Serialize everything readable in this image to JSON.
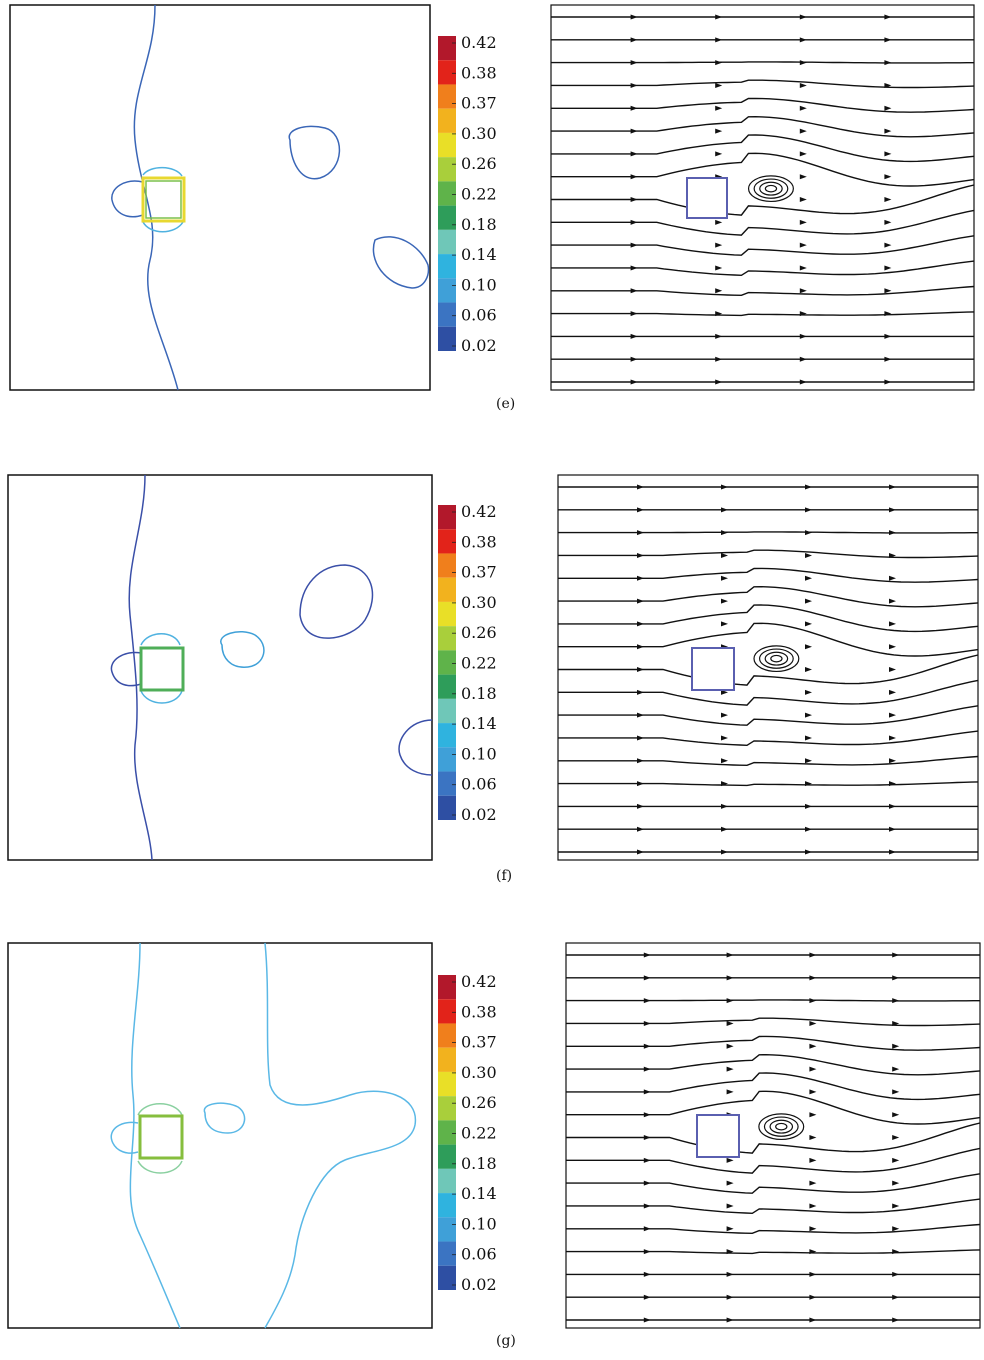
{
  "colorbar": {
    "labels": [
      "0.42",
      "0.38",
      "0.37",
      "0.30",
      "0.26",
      "0.22",
      "0.18",
      "0.14",
      "0.10",
      "0.06",
      "0.02"
    ],
    "colors": [
      "#b2182b",
      "#e2231a",
      "#f07f1c",
      "#f2b21e",
      "#e9df27",
      "#a9cf3b",
      "#5fb34a",
      "#2e9d5a",
      "#6fc7b8",
      "#2fb3df",
      "#3fa0d8",
      "#3b74c2",
      "#2e4fa3"
    ]
  },
  "panels": [
    {
      "label": "(e)",
      "contour_color": "#3a66b7",
      "square_color": "#e8d830"
    },
    {
      "label": "(f)",
      "contour_color": "#3a4fa8",
      "square_color": "#4fae58"
    },
    {
      "label": "(g)",
      "contour_color": "#5ab8e6",
      "square_color": "#86be3e"
    }
  ],
  "streamline_obstacle_color": "#5a5fb0"
}
